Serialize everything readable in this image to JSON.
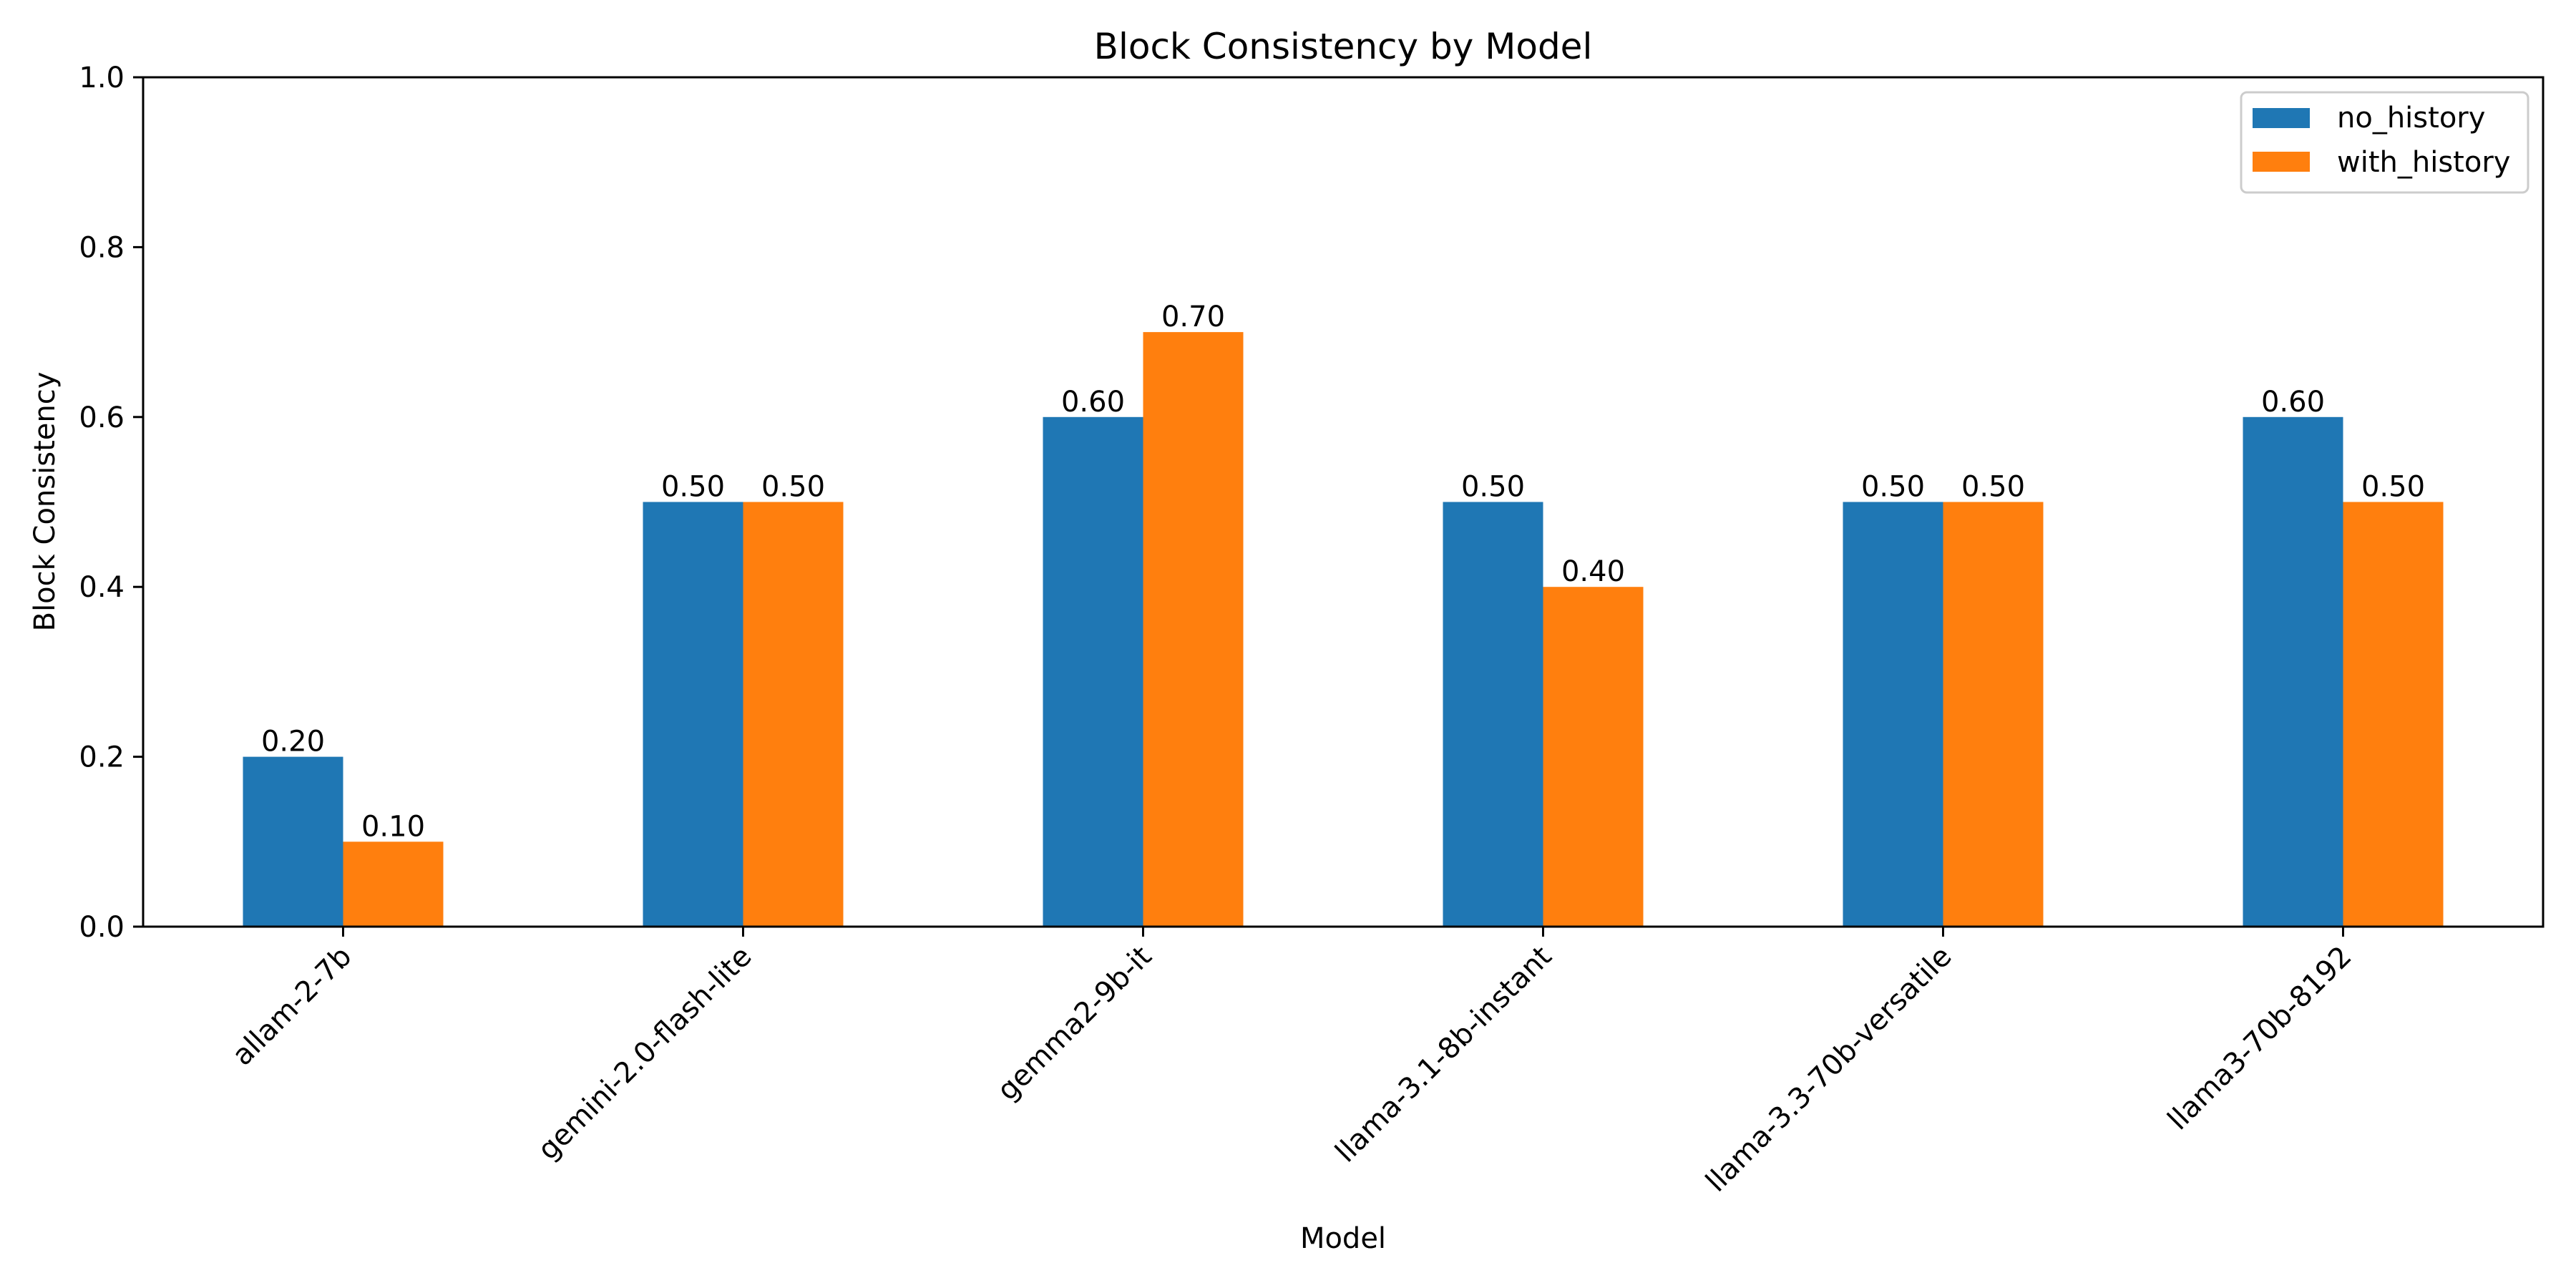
{
  "chart_data": {
    "type": "bar",
    "title": "Block Consistency by Model",
    "xlabel": "Model",
    "ylabel": "Block Consistency",
    "categories": [
      "allam-2-7b",
      "gemini-2.0-flash-lite",
      "gemma2-9b-it",
      "llama-3.1-8b-instant",
      "llama-3.3-70b-versatile",
      "llama3-70b-8192"
    ],
    "series": [
      {
        "name": "no_history",
        "color": "#1f77b4",
        "values": [
          0.2,
          0.5,
          0.6,
          0.5,
          0.5,
          0.6
        ],
        "labels": [
          "0.20",
          "0.50",
          "0.60",
          "0.50",
          "0.50",
          "0.60"
        ]
      },
      {
        "name": "with_history",
        "color": "#ff7f0e",
        "values": [
          0.1,
          0.5,
          0.7,
          0.4,
          0.5,
          0.5
        ],
        "labels": [
          "0.10",
          "0.50",
          "0.70",
          "0.40",
          "0.50",
          "0.50"
        ]
      }
    ],
    "ylim": [
      0,
      1.0
    ],
    "yticks": [
      0.0,
      0.2,
      0.4,
      0.6,
      0.8,
      1.0
    ],
    "ytick_labels": [
      "0.0",
      "0.2",
      "0.4",
      "0.6",
      "0.8",
      "1.0"
    ],
    "grid": false,
    "legend": "top-right"
  }
}
